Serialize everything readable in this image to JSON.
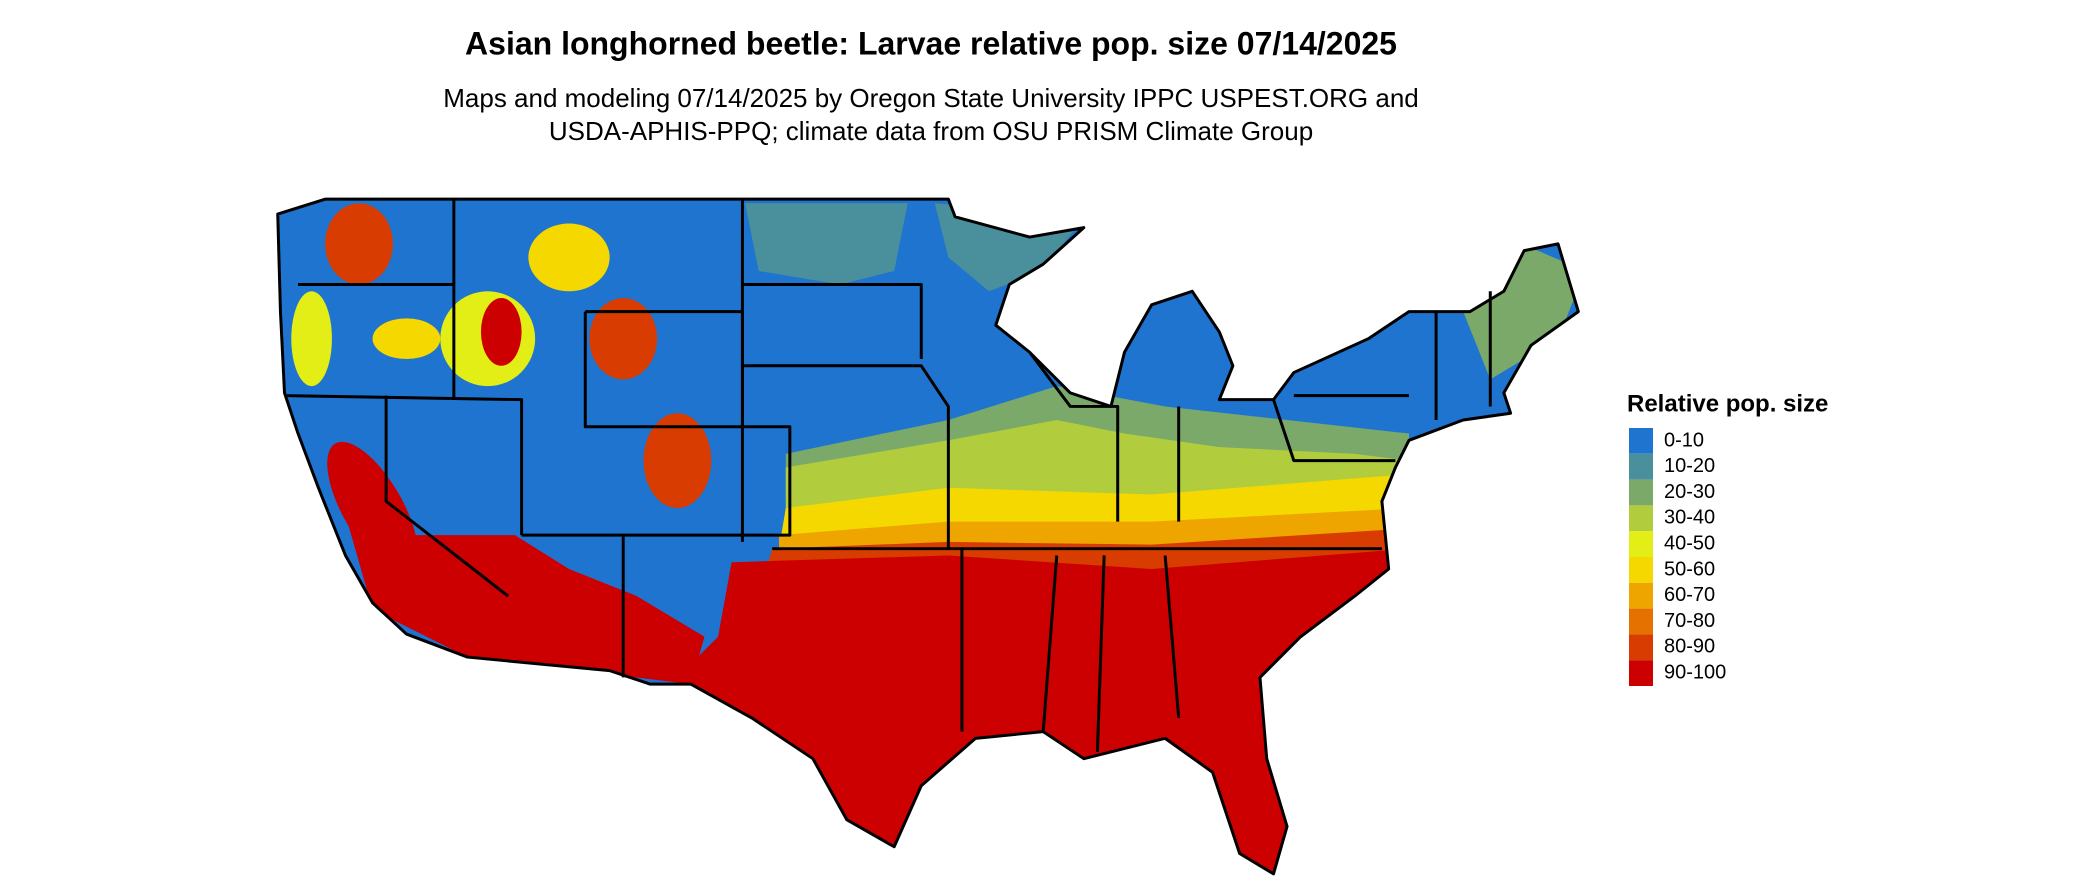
{
  "title": "Asian longhorned beetle: Larvae relative pop. size 07/14/2025",
  "subtitle": [
    "Maps and modeling 07/14/2025 by Oregon State University IPPC USPEST.ORG and",
    "USDA-APHIS-PPQ; climate data from OSU PRISM Climate Group"
  ],
  "legend": {
    "title": "Relative pop. size",
    "items": [
      {
        "label": "0-10",
        "color": "#1f74cf"
      },
      {
        "label": "10-20",
        "color": "#4a8f9c"
      },
      {
        "label": "20-30",
        "color": "#7aa96a"
      },
      {
        "label": "30-40",
        "color": "#b1cd3d"
      },
      {
        "label": "40-50",
        "color": "#e3ee16"
      },
      {
        "label": "50-60",
        "color": "#f5d800"
      },
      {
        "label": "60-70",
        "color": "#eea500"
      },
      {
        "label": "70-80",
        "color": "#e57200"
      },
      {
        "label": "80-90",
        "color": "#d83c00"
      },
      {
        "label": "90-100",
        "color": "#cc0000"
      }
    ]
  }
}
